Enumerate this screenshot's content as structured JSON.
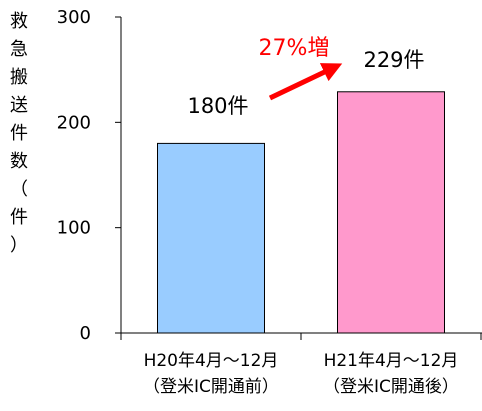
{
  "chart_data": {
    "type": "bar",
    "ylabel": "救急搬送件数（件）",
    "ylim": [
      0,
      300
    ],
    "yticks": [
      0,
      100,
      200,
      300
    ],
    "categories": [
      [
        "H20年4月～12月",
        "（登米IC開通前）"
      ],
      [
        "H21年4月～12月",
        "（登米IC開通後）"
      ]
    ],
    "values": [
      180,
      229
    ],
    "value_labels": [
      "180件",
      "229件"
    ],
    "bar_colors": [
      "#99ccff",
      "#ff99cc"
    ],
    "annotation": {
      "text": "27%増",
      "color": "#ff0000"
    },
    "grid": false,
    "legend": "none"
  }
}
